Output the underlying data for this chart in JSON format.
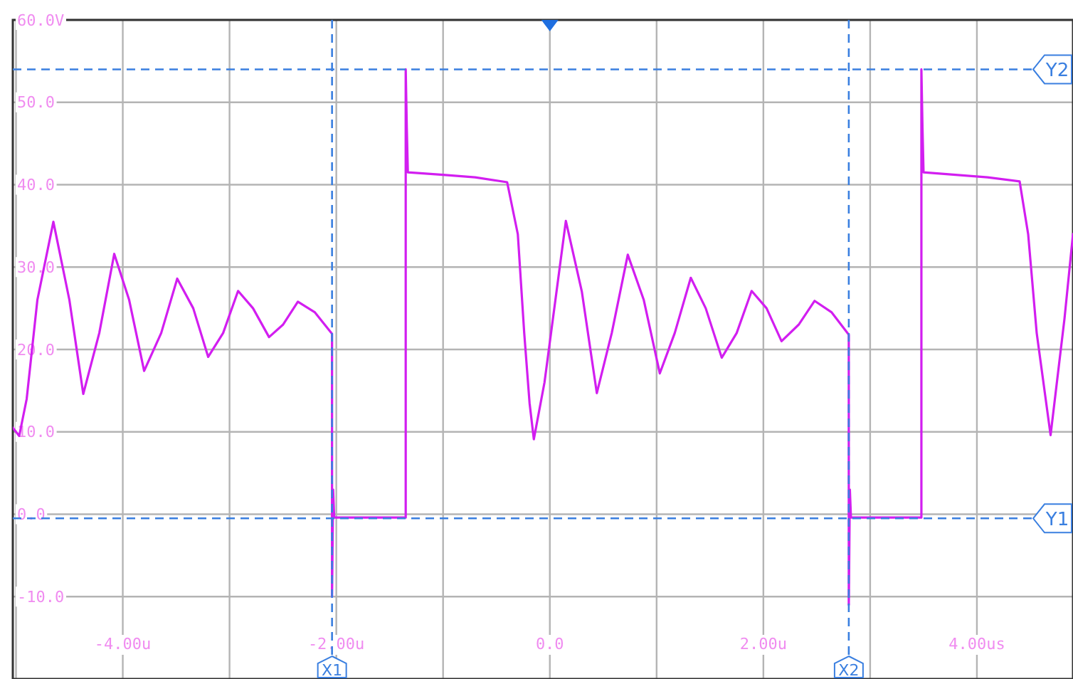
{
  "chart_data": {
    "type": "line",
    "xlim": [
      -5.03,
      4.9
    ],
    "ylim": [
      -20,
      60
    ],
    "xticks": [
      {
        "value": -5,
        "label": null
      },
      {
        "value": -4,
        "label": "-4.00u"
      },
      {
        "value": -3,
        "label": null
      },
      {
        "value": -2,
        "label": "-2.00u"
      },
      {
        "value": -1,
        "label": null
      },
      {
        "value": 0,
        "label": "0.0"
      },
      {
        "value": 1,
        "label": null
      },
      {
        "value": 2,
        "label": "2.00u"
      },
      {
        "value": 3,
        "label": null
      },
      {
        "value": 4,
        "label": "4.00us"
      }
    ],
    "yticks": [
      {
        "value": 60,
        "label": "60.0V"
      },
      {
        "value": 50,
        "label": "50.0"
      },
      {
        "value": 40,
        "label": "40.0"
      },
      {
        "value": 30,
        "label": "30.0"
      },
      {
        "value": 20,
        "label": "20.0"
      },
      {
        "value": 10,
        "label": "10.0"
      },
      {
        "value": 0,
        "label": "0.0"
      },
      {
        "value": -10,
        "label": "-10.0"
      },
      {
        "value": -20,
        "label": null
      }
    ],
    "grid": true,
    "marker": "none",
    "line_style": "solid",
    "series": [
      {
        "color": "#d21ef0",
        "x": [
          -5.03,
          -4.97,
          -4.9,
          -4.8,
          -4.65,
          -4.5,
          -4.37,
          -4.22,
          -4.08,
          -3.94,
          -3.8,
          -3.64,
          -3.49,
          -3.34,
          -3.2,
          -3.06,
          -2.92,
          -2.78,
          -2.63,
          -2.5,
          -2.36,
          -2.2,
          -2.04,
          -2.04,
          -2.03,
          -2.02,
          -2.0,
          -1.35,
          -1.35,
          -1.34,
          -1.33,
          -1.0,
          -0.7,
          -0.4,
          -0.3,
          -0.24,
          -0.19,
          -0.15,
          -0.05,
          0.15,
          0.3,
          0.44,
          0.58,
          0.73,
          0.88,
          1.03,
          1.17,
          1.32,
          1.46,
          1.61,
          1.75,
          1.89,
          2.03,
          2.17,
          2.33,
          2.48,
          2.64,
          2.8,
          2.8,
          2.81,
          2.82,
          2.84,
          3.48,
          3.48,
          3.49,
          3.5,
          3.8,
          4.1,
          4.4,
          4.48,
          4.56,
          4.69,
          4.82,
          4.9
        ],
        "values": [
          10.5,
          9.5,
          14,
          26,
          35.5,
          26,
          14.6,
          22,
          31.6,
          26,
          17.4,
          22,
          28.6,
          25,
          19.1,
          22,
          27.1,
          25,
          21.5,
          23,
          25.8,
          24.5,
          21.9,
          -10,
          3,
          -0.4,
          -0.4,
          -0.4,
          54,
          47,
          41.5,
          41.2,
          40.9,
          40.3,
          34,
          22,
          13.5,
          9.1,
          16,
          35.6,
          27,
          14.7,
          22,
          31.5,
          26,
          17.1,
          22,
          28.7,
          25,
          19,
          22,
          27.1,
          25,
          21,
          23,
          25.9,
          24.5,
          21.8,
          -11,
          3,
          -0.4,
          -0.4,
          -0.4,
          54,
          47,
          41.5,
          41.2,
          40.9,
          40.4,
          34,
          22,
          9.6,
          23.7,
          34
        ]
      }
    ],
    "ref_lines": [
      {
        "axis": "x",
        "value": -2.04,
        "label": "X1",
        "color": "#3a7fe0",
        "line_style": "dashed"
      },
      {
        "axis": "x",
        "value": 2.8,
        "label": "X2",
        "color": "#3a7fe0",
        "line_style": "dashed"
      },
      {
        "axis": "y",
        "value": 54,
        "label": "Y2",
        "color": "#3a7fe0",
        "line_style": "dashed"
      },
      {
        "axis": "y",
        "value": -0.5,
        "label": "Y1",
        "color": "#3a7fe0",
        "line_style": "dashed"
      }
    ]
  }
}
